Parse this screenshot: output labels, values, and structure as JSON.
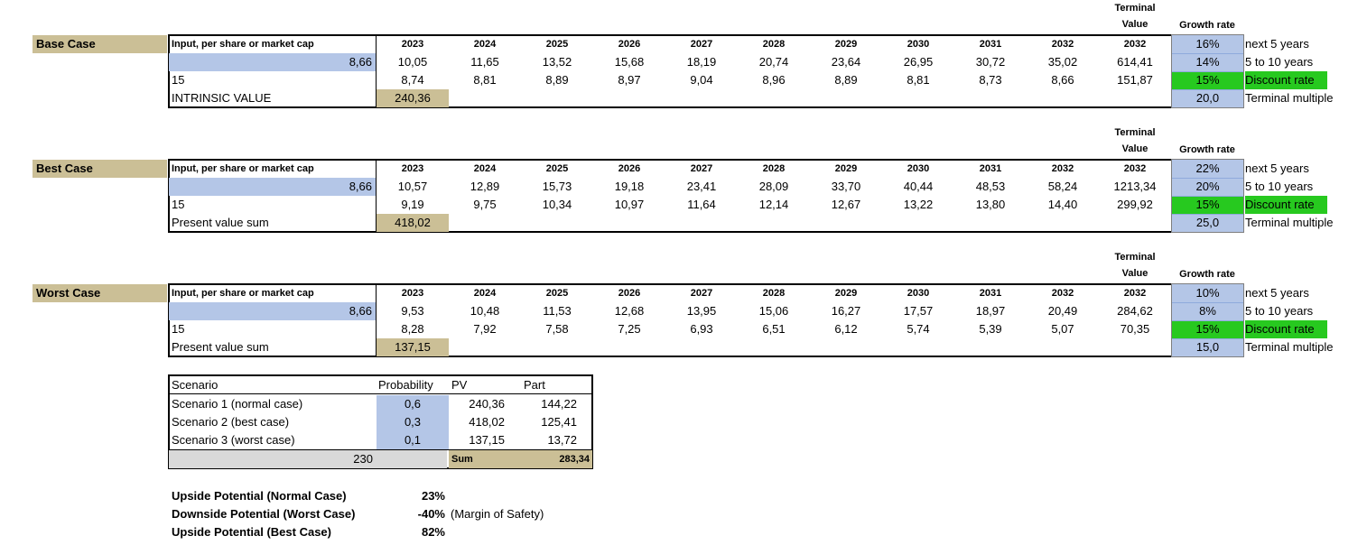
{
  "cases": [
    {
      "label": "Base Case",
      "input_label": "Input, per share or market cap",
      "input_value": "8,66",
      "discount_years": "15",
      "result_label": "INTRINSIC VALUE",
      "result_value": "240,36",
      "terminal_header": "Terminal\nValue",
      "growth_header": "Growth rate",
      "years": [
        "2023",
        "2024",
        "2025",
        "2026",
        "2027",
        "2028",
        "2029",
        "2030",
        "2031",
        "2032",
        "2032"
      ],
      "fcf": [
        "10,05",
        "11,65",
        "13,52",
        "15,68",
        "18,19",
        "20,74",
        "23,64",
        "26,95",
        "30,72",
        "35,02",
        "614,41"
      ],
      "pv": [
        "8,74",
        "8,81",
        "8,89",
        "8,97",
        "9,04",
        "8,96",
        "8,89",
        "8,81",
        "8,73",
        "8,66",
        "151,87"
      ],
      "growth_5": "16%",
      "growth_10": "14%",
      "discount_rate": "15%",
      "terminal_multiple": "20,0",
      "labels": [
        "next 5 years",
        "5 to 10 years",
        "Discount rate",
        "Terminal multiple"
      ]
    },
    {
      "label": "Best Case",
      "input_label": "Input, per share or market cap",
      "input_value": "8,66",
      "discount_years": "15",
      "result_label": "Present value sum",
      "result_value": "418,02",
      "terminal_header": "Terminal\nValue",
      "growth_header": "Growth rate",
      "years": [
        "2023",
        "2024",
        "2025",
        "2026",
        "2027",
        "2028",
        "2029",
        "2030",
        "2031",
        "2032",
        "2032"
      ],
      "fcf": [
        "10,57",
        "12,89",
        "15,73",
        "19,18",
        "23,41",
        "28,09",
        "33,70",
        "40,44",
        "48,53",
        "58,24",
        "1213,34"
      ],
      "pv": [
        "9,19",
        "9,75",
        "10,34",
        "10,97",
        "11,64",
        "12,14",
        "12,67",
        "13,22",
        "13,80",
        "14,40",
        "299,92"
      ],
      "growth_5": "22%",
      "growth_10": "20%",
      "discount_rate": "15%",
      "terminal_multiple": "25,0",
      "labels": [
        "next 5 years",
        "5 to 10 years",
        "Discount rate",
        "Terminal multiple"
      ]
    },
    {
      "label": "Worst Case",
      "input_label": "Input, per share or market cap",
      "input_value": "8,66",
      "discount_years": "15",
      "result_label": "Present value sum",
      "result_value": "137,15",
      "terminal_header": "Terminal\nValue",
      "growth_header": "Growth rate",
      "years": [
        "2023",
        "2024",
        "2025",
        "2026",
        "2027",
        "2028",
        "2029",
        "2030",
        "2031",
        "2032",
        "2032"
      ],
      "fcf": [
        "9,53",
        "10,48",
        "11,53",
        "12,68",
        "13,95",
        "15,06",
        "16,27",
        "17,57",
        "18,97",
        "20,49",
        "284,62"
      ],
      "pv": [
        "8,28",
        "7,92",
        "7,58",
        "7,25",
        "6,93",
        "6,51",
        "6,12",
        "5,74",
        "5,39",
        "5,07",
        "70,35"
      ],
      "growth_5": "10%",
      "growth_10": "8%",
      "discount_rate": "15%",
      "terminal_multiple": "15,0",
      "labels": [
        "next 5 years",
        "5 to 10 years",
        "Discount rate",
        "Terminal multiple"
      ]
    }
  ],
  "scenario_table": {
    "headers": [
      "Scenario",
      "Probability",
      "PV",
      "Part"
    ],
    "rows": [
      {
        "name": "Scenario 1 (normal case)",
        "prob": "0,6",
        "pv": "240,36",
        "part": "144,22"
      },
      {
        "name": "Scenario 2 (best case)",
        "prob": "0,3",
        "pv": "418,02",
        "part": "125,41"
      },
      {
        "name": "Scenario 3 (worst case)",
        "prob": "0,1",
        "pv": "137,15",
        "part": "13,72"
      }
    ],
    "current_price": "230",
    "sum_label": "Sum",
    "sum_value": "283,34"
  },
  "potential": [
    {
      "label": "Upside Potential (Normal Case)",
      "value": "23%",
      "note": ""
    },
    {
      "label": "Downside Potential (Worst Case)",
      "value": "-40%",
      "note": "(Margin of Safety)"
    },
    {
      "label": "Upside Potential (Best Case)",
      "value": "82%",
      "note": ""
    }
  ],
  "colors": {
    "tan": "#cbbf96",
    "blue": "#b4c6e7",
    "green": "#27c91f",
    "grey": "#d9d9d9"
  }
}
